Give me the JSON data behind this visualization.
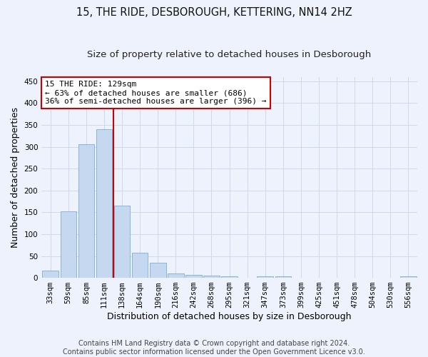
{
  "title": "15, THE RIDE, DESBOROUGH, KETTERING, NN14 2HZ",
  "subtitle": "Size of property relative to detached houses in Desborough",
  "xlabel": "Distribution of detached houses by size in Desborough",
  "ylabel": "Number of detached properties",
  "categories": [
    "33sqm",
    "59sqm",
    "85sqm",
    "111sqm",
    "138sqm",
    "164sqm",
    "190sqm",
    "216sqm",
    "242sqm",
    "268sqm",
    "295sqm",
    "321sqm",
    "347sqm",
    "373sqm",
    "399sqm",
    "425sqm",
    "451sqm",
    "478sqm",
    "504sqm",
    "530sqm",
    "556sqm"
  ],
  "values": [
    17,
    153,
    306,
    340,
    165,
    57,
    34,
    10,
    7,
    5,
    4,
    0,
    4,
    4,
    0,
    0,
    0,
    0,
    0,
    0,
    4
  ],
  "bar_color": "#c5d8f0",
  "bar_edge_color": "#7aaedb",
  "vline_bin": 4,
  "annotation_line1": "15 THE RIDE: 129sqm",
  "annotation_line2": "← 63% of detached houses are smaller (686)",
  "annotation_line3": "36% of semi-detached houses are larger (396) →",
  "annotation_box_color": "#ffffff",
  "annotation_box_edge_color": "#cc0000",
  "vline_color": "#cc0000",
  "grid_color": "#cdd8ee",
  "background_color": "#eef2fc",
  "footer_line1": "Contains HM Land Registry data © Crown copyright and database right 2024.",
  "footer_line2": "Contains public sector information licensed under the Open Government Licence v3.0.",
  "ylim": [
    0,
    460
  ],
  "yticks": [
    0,
    50,
    100,
    150,
    200,
    250,
    300,
    350,
    400,
    450
  ],
  "title_fontsize": 10.5,
  "subtitle_fontsize": 9.5,
  "axis_label_fontsize": 9,
  "tick_fontsize": 7.5,
  "footer_fontsize": 7,
  "annotation_fontsize": 8
}
